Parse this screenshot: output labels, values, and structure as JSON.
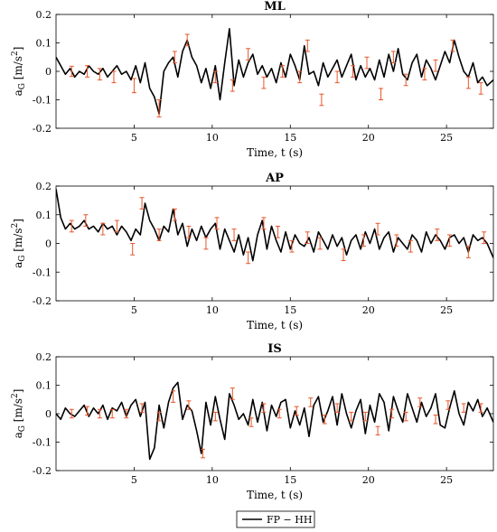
{
  "chart_data": [
    {
      "type": "line",
      "title": "ML",
      "xlabel": "Time, t (s)",
      "ylabel": "a_G [m/s^2]",
      "ylabel_parts": {
        "main": "a",
        "sub": "G",
        "unit": "[m/s",
        "sup": "2",
        "close": "]"
      },
      "xlim": [
        0,
        28
      ],
      "ylim": [
        -0.2,
        0.2
      ],
      "xticks": [
        5,
        10,
        15,
        20,
        25
      ],
      "yticks": [
        -0.2,
        -0.1,
        0,
        0.1,
        0.2
      ],
      "grid": false,
      "series": [
        {
          "name": "FP - HH",
          "color": "#000000",
          "x": [
            0,
            0.3,
            0.6,
            0.9,
            1.2,
            1.5,
            1.8,
            2.1,
            2.4,
            2.7,
            3.0,
            3.3,
            3.6,
            3.9,
            4.2,
            4.5,
            4.8,
            5.1,
            5.4,
            5.7,
            6.0,
            6.3,
            6.6,
            6.9,
            7.2,
            7.5,
            7.8,
            8.1,
            8.4,
            8.7,
            9.0,
            9.3,
            9.6,
            9.9,
            10.2,
            10.5,
            10.8,
            11.1,
            11.4,
            11.7,
            12.0,
            12.3,
            12.6,
            12.9,
            13.2,
            13.5,
            13.8,
            14.1,
            14.4,
            14.7,
            15.0,
            15.3,
            15.6,
            15.9,
            16.2,
            16.5,
            16.8,
            17.1,
            17.4,
            17.7,
            18.0,
            18.3,
            18.6,
            18.9,
            19.2,
            19.5,
            19.8,
            20.1,
            20.4,
            20.7,
            21.0,
            21.3,
            21.6,
            21.9,
            22.2,
            22.5,
            22.8,
            23.1,
            23.4,
            23.7,
            24.0,
            24.3,
            24.6,
            24.9,
            25.2,
            25.5,
            25.8,
            26.1,
            26.4,
            26.7,
            27.0,
            27.3,
            27.6,
            28.0
          ],
          "y": [
            0.05,
            0.02,
            -0.01,
            0.01,
            -0.02,
            0.0,
            -0.01,
            0.02,
            0.0,
            -0.01,
            0.01,
            -0.02,
            0.0,
            0.02,
            -0.01,
            0.0,
            -0.03,
            0.02,
            -0.04,
            0.03,
            -0.06,
            -0.09,
            -0.15,
            0.0,
            0.03,
            0.05,
            -0.02,
            0.07,
            0.11,
            0.05,
            0.02,
            -0.04,
            0.01,
            -0.06,
            0.02,
            -0.1,
            0.03,
            0.15,
            -0.05,
            0.04,
            -0.02,
            0.03,
            0.06,
            -0.01,
            0.02,
            -0.02,
            0.01,
            -0.04,
            0.03,
            -0.02,
            0.06,
            0.02,
            -0.03,
            0.09,
            -0.01,
            0.0,
            -0.05,
            0.03,
            -0.02,
            0.01,
            0.04,
            -0.02,
            0.02,
            0.06,
            -0.03,
            0.02,
            -0.02,
            0.01,
            -0.03,
            0.04,
            -0.02,
            0.06,
            0.0,
            0.08,
            -0.01,
            -0.03,
            0.03,
            0.06,
            -0.02,
            0.04,
            0.01,
            -0.03,
            0.02,
            0.07,
            0.03,
            0.11,
            0.05,
            0.0,
            -0.02,
            0.03,
            -0.04,
            -0.02,
            -0.05,
            -0.03
          ]
        }
      ],
      "error_bars": [
        {
          "x": 1.0,
          "y": 0.0,
          "err": 0.018
        },
        {
          "x": 2.0,
          "y": 0.0,
          "err": 0.02
        },
        {
          "x": 2.8,
          "y": -0.01,
          "err": 0.02
        },
        {
          "x": 3.7,
          "y": -0.02,
          "err": 0.02
        },
        {
          "x": 5.0,
          "y": -0.05,
          "err": 0.025
        },
        {
          "x": 6.6,
          "y": -0.13,
          "err": 0.03
        },
        {
          "x": 7.6,
          "y": 0.05,
          "err": 0.02
        },
        {
          "x": 8.4,
          "y": 0.11,
          "err": 0.02
        },
        {
          "x": 10.2,
          "y": -0.02,
          "err": 0.02
        },
        {
          "x": 11.3,
          "y": -0.05,
          "err": 0.02
        },
        {
          "x": 12.3,
          "y": 0.06,
          "err": 0.02
        },
        {
          "x": 13.3,
          "y": -0.04,
          "err": 0.02
        },
        {
          "x": 14.5,
          "y": 0.0,
          "err": 0.02
        },
        {
          "x": 15.6,
          "y": -0.02,
          "err": 0.02
        },
        {
          "x": 16.1,
          "y": 0.09,
          "err": 0.02
        },
        {
          "x": 17.0,
          "y": -0.1,
          "err": 0.02
        },
        {
          "x": 18.0,
          "y": -0.02,
          "err": 0.02
        },
        {
          "x": 19.0,
          "y": 0.0,
          "err": 0.02
        },
        {
          "x": 19.9,
          "y": 0.03,
          "err": 0.02
        },
        {
          "x": 20.8,
          "y": -0.08,
          "err": 0.02
        },
        {
          "x": 21.6,
          "y": 0.05,
          "err": 0.02
        },
        {
          "x": 22.4,
          "y": -0.03,
          "err": 0.02
        },
        {
          "x": 23.6,
          "y": -0.01,
          "err": 0.02
        },
        {
          "x": 24.3,
          "y": 0.02,
          "err": 0.02
        },
        {
          "x": 25.4,
          "y": 0.09,
          "err": 0.02
        },
        {
          "x": 26.4,
          "y": -0.04,
          "err": 0.02
        },
        {
          "x": 27.2,
          "y": -0.06,
          "err": 0.02
        }
      ]
    },
    {
      "type": "line",
      "title": "AP",
      "xlabel": "Time, t (s)",
      "ylabel": "a_G [m/s^2]",
      "ylabel_parts": {
        "main": "a",
        "sub": "G",
        "unit": "[m/s",
        "sup": "2",
        "close": "]"
      },
      "xlim": [
        0,
        28
      ],
      "ylim": [
        -0.2,
        0.2
      ],
      "xticks": [
        5,
        10,
        15,
        20,
        25
      ],
      "yticks": [
        -0.2,
        -0.1,
        0,
        0.1,
        0.2
      ],
      "grid": false,
      "series": [
        {
          "name": "FP - HH",
          "color": "#000000",
          "x": [
            0,
            0.3,
            0.6,
            0.9,
            1.2,
            1.5,
            1.8,
            2.1,
            2.4,
            2.7,
            3.0,
            3.3,
            3.6,
            3.9,
            4.2,
            4.5,
            4.8,
            5.1,
            5.4,
            5.7,
            6.0,
            6.3,
            6.6,
            6.9,
            7.2,
            7.5,
            7.8,
            8.1,
            8.4,
            8.7,
            9.0,
            9.3,
            9.6,
            9.9,
            10.2,
            10.5,
            10.8,
            11.1,
            11.4,
            11.7,
            12.0,
            12.3,
            12.6,
            12.9,
            13.2,
            13.5,
            13.8,
            14.1,
            14.4,
            14.7,
            15.0,
            15.3,
            15.6,
            15.9,
            16.2,
            16.5,
            16.8,
            17.1,
            17.4,
            17.7,
            18.0,
            18.3,
            18.6,
            18.9,
            19.2,
            19.5,
            19.8,
            20.1,
            20.4,
            20.7,
            21.0,
            21.3,
            21.6,
            21.9,
            22.2,
            22.5,
            22.8,
            23.1,
            23.4,
            23.7,
            24.0,
            24.3,
            24.6,
            24.9,
            25.2,
            25.5,
            25.8,
            26.1,
            26.4,
            26.7,
            27.0,
            27.3,
            27.6,
            28.0
          ],
          "y": [
            0.19,
            0.09,
            0.05,
            0.07,
            0.05,
            0.06,
            0.08,
            0.05,
            0.06,
            0.04,
            0.07,
            0.05,
            0.06,
            0.03,
            0.06,
            0.04,
            0.01,
            0.05,
            0.03,
            0.14,
            0.08,
            0.05,
            0.01,
            0.06,
            0.04,
            0.12,
            0.03,
            0.07,
            -0.01,
            0.05,
            0.01,
            0.06,
            0.02,
            0.05,
            0.07,
            -0.02,
            0.05,
            0.01,
            -0.03,
            0.03,
            -0.04,
            0.02,
            -0.06,
            0.03,
            0.08,
            -0.02,
            0.06,
            0.01,
            -0.03,
            0.04,
            -0.02,
            0.03,
            0.0,
            -0.01,
            0.02,
            -0.03,
            0.04,
            0.01,
            -0.02,
            0.03,
            -0.01,
            0.02,
            -0.04,
            0.01,
            0.03,
            -0.02,
            0.04,
            0.0,
            0.05,
            -0.02,
            0.02,
            0.04,
            -0.03,
            0.02,
            0.0,
            -0.02,
            0.03,
            0.01,
            -0.03,
            0.04,
            0.0,
            0.03,
            0.01,
            -0.02,
            0.02,
            0.03,
            0.0,
            0.02,
            -0.03,
            0.03,
            0.01,
            0.02,
            0.0,
            -0.05
          ]
        }
      ],
      "error_bars": [
        {
          "x": 1.0,
          "y": 0.06,
          "err": 0.02
        },
        {
          "x": 1.9,
          "y": 0.08,
          "err": 0.02
        },
        {
          "x": 3.0,
          "y": 0.05,
          "err": 0.02
        },
        {
          "x": 3.9,
          "y": 0.06,
          "err": 0.02
        },
        {
          "x": 4.9,
          "y": -0.02,
          "err": 0.02
        },
        {
          "x": 5.5,
          "y": 0.14,
          "err": 0.02
        },
        {
          "x": 6.6,
          "y": 0.03,
          "err": 0.02
        },
        {
          "x": 7.6,
          "y": 0.1,
          "err": 0.02
        },
        {
          "x": 8.5,
          "y": 0.04,
          "err": 0.02
        },
        {
          "x": 9.6,
          "y": 0.0,
          "err": 0.02
        },
        {
          "x": 10.3,
          "y": 0.07,
          "err": 0.02
        },
        {
          "x": 11.4,
          "y": 0.03,
          "err": 0.02
        },
        {
          "x": 12.3,
          "y": -0.05,
          "err": 0.02
        },
        {
          "x": 13.3,
          "y": 0.07,
          "err": 0.02
        },
        {
          "x": 14.2,
          "y": 0.04,
          "err": 0.02
        },
        {
          "x": 15.1,
          "y": -0.01,
          "err": 0.02
        },
        {
          "x": 16.1,
          "y": 0.02,
          "err": 0.02
        },
        {
          "x": 16.9,
          "y": 0.0,
          "err": 0.02
        },
        {
          "x": 18.4,
          "y": -0.04,
          "err": 0.02
        },
        {
          "x": 19.7,
          "y": 0.01,
          "err": 0.02
        },
        {
          "x": 20.6,
          "y": 0.05,
          "err": 0.02
        },
        {
          "x": 21.8,
          "y": 0.01,
          "err": 0.02
        },
        {
          "x": 22.7,
          "y": -0.01,
          "err": 0.02
        },
        {
          "x": 24.4,
          "y": 0.03,
          "err": 0.02
        },
        {
          "x": 25.2,
          "y": 0.01,
          "err": 0.02
        },
        {
          "x": 26.4,
          "y": -0.03,
          "err": 0.02
        },
        {
          "x": 27.4,
          "y": 0.02,
          "err": 0.02
        }
      ]
    },
    {
      "type": "line",
      "title": "IS",
      "xlabel": "Time, t (s)",
      "ylabel": "a_G [m/s^2]",
      "ylabel_parts": {
        "main": "a",
        "sub": "G",
        "unit": "[m/s",
        "sup": "2",
        "close": "]"
      },
      "xlim": [
        0,
        28
      ],
      "ylim": [
        -0.2,
        0.2
      ],
      "xticks": [
        5,
        10,
        15,
        20,
        25
      ],
      "yticks": [
        -0.2,
        -0.1,
        0,
        0.1,
        0.2
      ],
      "grid": false,
      "series": [
        {
          "name": "FP - HH",
          "color": "#000000",
          "x": [
            0,
            0.3,
            0.6,
            0.9,
            1.2,
            1.5,
            1.8,
            2.1,
            2.4,
            2.7,
            3.0,
            3.3,
            3.6,
            3.9,
            4.2,
            4.5,
            4.8,
            5.1,
            5.4,
            5.7,
            6.0,
            6.3,
            6.6,
            6.9,
            7.2,
            7.5,
            7.8,
            8.1,
            8.4,
            8.7,
            9.0,
            9.3,
            9.6,
            9.9,
            10.2,
            10.5,
            10.8,
            11.1,
            11.4,
            11.7,
            12.0,
            12.3,
            12.6,
            12.9,
            13.2,
            13.5,
            13.8,
            14.1,
            14.4,
            14.7,
            15.0,
            15.3,
            15.6,
            15.9,
            16.2,
            16.5,
            16.8,
            17.1,
            17.4,
            17.7,
            18.0,
            18.3,
            18.6,
            18.9,
            19.2,
            19.5,
            19.8,
            20.1,
            20.4,
            20.7,
            21.0,
            21.3,
            21.6,
            21.9,
            22.2,
            22.5,
            22.8,
            23.1,
            23.4,
            23.7,
            24.0,
            24.3,
            24.6,
            24.9,
            25.2,
            25.5,
            25.8,
            26.1,
            26.4,
            26.7,
            27.0,
            27.3,
            27.6,
            28.0
          ],
          "y": [
            0.0,
            -0.02,
            0.02,
            0.0,
            -0.01,
            0.01,
            0.03,
            -0.01,
            0.02,
            0.0,
            0.03,
            -0.02,
            0.02,
            0.01,
            0.04,
            -0.01,
            0.03,
            0.05,
            -0.01,
            0.04,
            -0.16,
            -0.12,
            0.03,
            -0.05,
            0.04,
            0.09,
            0.11,
            -0.02,
            0.03,
            0.01,
            -0.06,
            -0.14,
            0.04,
            -0.04,
            0.06,
            -0.02,
            -0.09,
            0.07,
            0.03,
            -0.02,
            0.0,
            -0.04,
            0.05,
            -0.03,
            0.04,
            -0.06,
            0.03,
            -0.01,
            0.04,
            0.05,
            -0.05,
            0.01,
            -0.04,
            0.02,
            -0.08,
            0.03,
            0.06,
            -0.03,
            0.01,
            0.06,
            -0.04,
            0.07,
            0.0,
            -0.05,
            0.01,
            0.05,
            -0.07,
            0.03,
            -0.03,
            0.07,
            0.04,
            -0.06,
            0.06,
            0.01,
            -0.03,
            0.07,
            0.02,
            -0.03,
            0.04,
            -0.01,
            0.02,
            0.07,
            -0.04,
            -0.05,
            0.02,
            0.08,
            0.0,
            -0.04,
            0.04,
            0.01,
            0.05,
            -0.01,
            0.02,
            -0.03
          ]
        }
      ],
      "error_bars": [
        {
          "x": 1.0,
          "y": 0.0,
          "err": 0.015
        },
        {
          "x": 2.0,
          "y": 0.01,
          "err": 0.015
        },
        {
          "x": 2.8,
          "y": 0.0,
          "err": 0.015
        },
        {
          "x": 3.6,
          "y": 0.0,
          "err": 0.015
        },
        {
          "x": 4.5,
          "y": 0.0,
          "err": 0.015
        },
        {
          "x": 5.5,
          "y": 0.02,
          "err": 0.015
        },
        {
          "x": 6.6,
          "y": -0.01,
          "err": 0.015
        },
        {
          "x": 7.5,
          "y": 0.06,
          "err": 0.02
        },
        {
          "x": 8.5,
          "y": 0.03,
          "err": 0.015
        },
        {
          "x": 9.4,
          "y": -0.14,
          "err": 0.015
        },
        {
          "x": 10.2,
          "y": -0.01,
          "err": 0.015
        },
        {
          "x": 11.3,
          "y": 0.07,
          "err": 0.02
        },
        {
          "x": 12.5,
          "y": -0.03,
          "err": 0.015
        },
        {
          "x": 13.3,
          "y": 0.02,
          "err": 0.015
        },
        {
          "x": 14.3,
          "y": 0.0,
          "err": 0.015
        },
        {
          "x": 15.4,
          "y": 0.01,
          "err": 0.015
        },
        {
          "x": 16.3,
          "y": 0.04,
          "err": 0.015
        },
        {
          "x": 17.2,
          "y": -0.02,
          "err": 0.015
        },
        {
          "x": 18.0,
          "y": 0.02,
          "err": 0.015
        },
        {
          "x": 18.9,
          "y": -0.01,
          "err": 0.015
        },
        {
          "x": 19.8,
          "y": -0.01,
          "err": 0.015
        },
        {
          "x": 20.6,
          "y": -0.06,
          "err": 0.015
        },
        {
          "x": 21.5,
          "y": 0.0,
          "err": 0.015
        },
        {
          "x": 22.4,
          "y": -0.01,
          "err": 0.015
        },
        {
          "x": 23.3,
          "y": 0.04,
          "err": 0.015
        },
        {
          "x": 24.3,
          "y": -0.02,
          "err": 0.015
        },
        {
          "x": 25.1,
          "y": 0.03,
          "err": 0.015
        },
        {
          "x": 26.1,
          "y": 0.02,
          "err": 0.015
        },
        {
          "x": 27.2,
          "y": 0.02,
          "err": 0.015
        }
      ]
    }
  ],
  "legend": {
    "label": "FP − HH",
    "position": "bottom-center",
    "line_color": "#000000"
  },
  "colors": {
    "line": "#000000",
    "error_bar": "#e8552a",
    "axes": "#000000",
    "background": "#ffffff"
  }
}
